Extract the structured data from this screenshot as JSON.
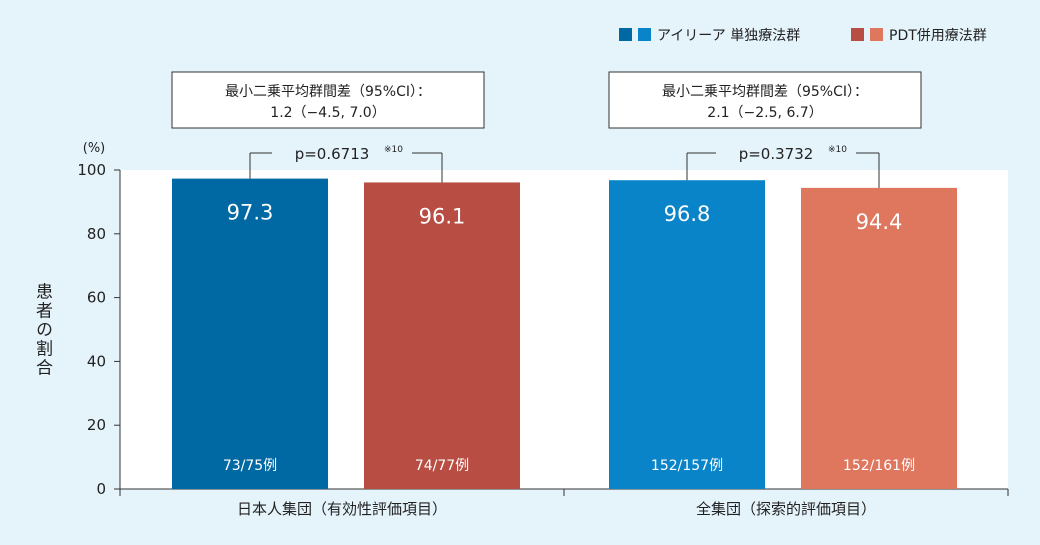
{
  "chart_data": {
    "type": "bar",
    "title": "",
    "xlabel": "",
    "ylabel": "患者の割合",
    "y_unit": "(%)",
    "ylim": [
      0,
      100
    ],
    "yticks": [
      0,
      20,
      40,
      60,
      80,
      100
    ],
    "grid": false,
    "legend_position": "top-right",
    "series": [
      {
        "name": "アイリーア 単独療法群",
        "colors": [
          "#0068a2",
          "#0a84c8"
        ]
      },
      {
        "name": "PDT併用療法群",
        "colors": [
          "#b84d44",
          "#df765e"
        ]
      }
    ],
    "groups": [
      {
        "label": "日本人集団（有効性評価項目）",
        "note_line1": "最小二乗平均群間差（95%CI）：",
        "note_line2": "1.2（−4.5, 7.0）",
        "pvalue": "p=0.6713",
        "pvalue_ref": "※10",
        "bars": [
          {
            "value": 97.3,
            "value_label": "97.3",
            "count_label": "73/75例",
            "color": "#0068a2"
          },
          {
            "value": 96.1,
            "value_label": "96.1",
            "count_label": "74/77例",
            "color": "#b84d44"
          }
        ]
      },
      {
        "label": "全集団（探索的評価項目）",
        "note_line1": "最小二乗平均群間差（95%CI）：",
        "note_line2": "2.1（−2.5, 6.7）",
        "pvalue": "p=0.3732",
        "pvalue_ref": "※10",
        "bars": [
          {
            "value": 96.8,
            "value_label": "96.8",
            "count_label": "152/157例",
            "color": "#0a84c8"
          },
          {
            "value": 94.4,
            "value_label": "94.4",
            "count_label": "152/161例",
            "color": "#df765e"
          }
        ]
      }
    ]
  }
}
